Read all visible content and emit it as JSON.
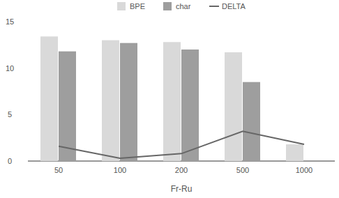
{
  "chart_data": {
    "type": "bar",
    "x_label": "Fr-Ru",
    "categories": [
      "50",
      "100",
      "200",
      "500",
      "1000"
    ],
    "series": [
      {
        "name": "BPE",
        "color": "#d9d9d9",
        "values": [
          13.4,
          13.0,
          12.8,
          11.7,
          1.8
        ]
      },
      {
        "name": "char",
        "color": "#9e9e9e",
        "values": [
          11.8,
          12.7,
          12.0,
          8.5,
          null
        ]
      },
      {
        "name": "DELTA",
        "color": "#666666",
        "type": "line",
        "values": [
          1.6,
          0.3,
          0.8,
          3.2,
          1.8
        ]
      }
    ],
    "ylim": [
      0,
      15
    ],
    "yticks": [
      0,
      5,
      10,
      15
    ],
    "grid": false,
    "legend": "top"
  }
}
